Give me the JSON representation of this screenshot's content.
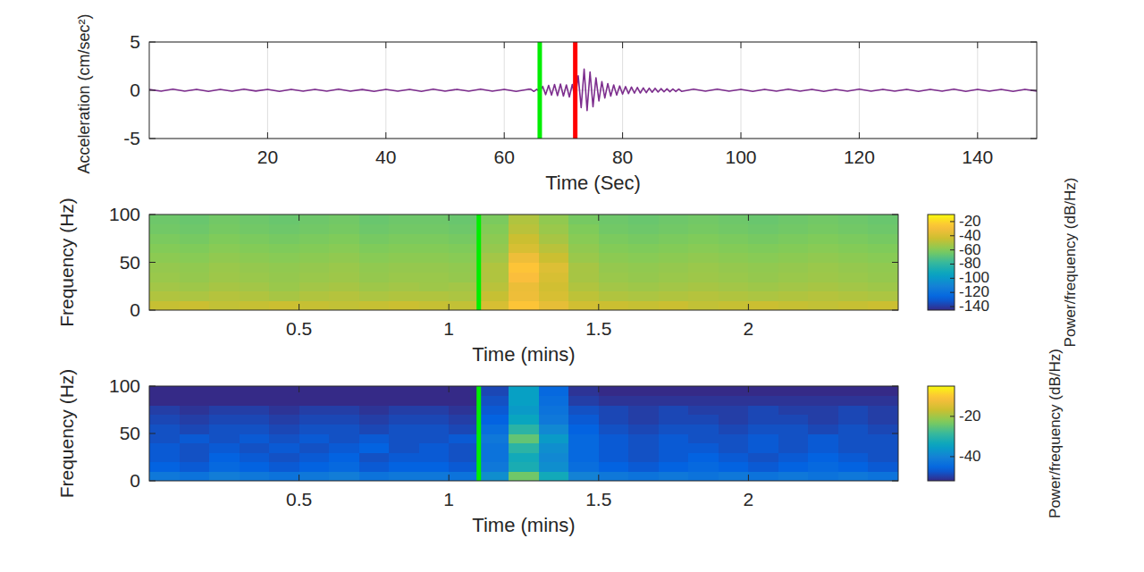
{
  "chart_data": [
    {
      "type": "line",
      "xlabel": "Time (Sec)",
      "ylabel": "Acceleration (cm/sec²)",
      "xlim": [
        0,
        150
      ],
      "xticks": [
        20,
        40,
        60,
        80,
        100,
        120,
        140
      ],
      "ylim": [
        -5,
        5
      ],
      "yticks": [
        -5,
        0,
        5
      ],
      "grid": true,
      "color": "#7d2e8e",
      "markers": [
        {
          "x": 66,
          "color": "#00ee00"
        },
        {
          "x": 72,
          "color": "#ff0000"
        }
      ],
      "x": [
        0,
        2,
        4,
        6,
        8,
        10,
        12,
        14,
        16,
        18,
        20,
        22,
        24,
        26,
        28,
        30,
        32,
        34,
        36,
        38,
        40,
        42,
        44,
        46,
        48,
        50,
        52,
        54,
        56,
        58,
        60,
        62,
        64,
        64.5,
        65,
        65.5,
        66,
        66.5,
        67,
        67.5,
        68,
        68.5,
        69,
        69.5,
        70,
        70.5,
        71,
        71.5,
        72,
        72.5,
        73,
        73.5,
        74,
        74.5,
        75,
        75.5,
        76,
        76.5,
        77,
        77.5,
        78,
        78.5,
        79,
        79.5,
        80,
        80.5,
        81,
        81.5,
        82,
        82.5,
        83,
        83.5,
        84,
        84.5,
        85,
        85.5,
        86,
        86.5,
        87,
        87.5,
        88,
        88.5,
        89,
        89.5,
        90,
        92,
        94,
        96,
        98,
        100,
        102,
        104,
        106,
        108,
        110,
        112,
        114,
        116,
        118,
        120,
        122,
        124,
        126,
        128,
        130,
        132,
        134,
        136,
        138,
        140,
        142,
        144,
        146,
        148,
        150
      ],
      "values": [
        0.08,
        -0.1,
        0.12,
        -0.09,
        0.1,
        -0.11,
        0.09,
        -0.1,
        0.11,
        -0.08,
        0.1,
        -0.12,
        0.09,
        -0.1,
        0.1,
        -0.09,
        0.12,
        -0.1,
        0.08,
        -0.11,
        0.1,
        -0.1,
        0.09,
        -0.12,
        0.11,
        -0.1,
        0.1,
        -0.09,
        0.12,
        -0.1,
        0.09,
        -0.11,
        0.1,
        0.1,
        -0.12,
        0.1,
        -0.15,
        0.4,
        -0.45,
        0.5,
        -0.5,
        0.6,
        -0.55,
        0.65,
        -0.6,
        0.55,
        -0.7,
        0.6,
        -0.8,
        1.5,
        -1.8,
        2.2,
        -2.1,
        1.9,
        -1.7,
        1.3,
        -1.1,
        0.9,
        -0.8,
        0.7,
        -0.6,
        0.55,
        -0.5,
        0.45,
        -0.4,
        0.38,
        -0.35,
        0.33,
        -0.3,
        0.3,
        -0.28,
        0.25,
        -0.25,
        0.22,
        -0.2,
        0.2,
        -0.18,
        0.17,
        -0.16,
        0.15,
        -0.15,
        0.14,
        -0.13,
        0.12,
        -0.12,
        0.11,
        -0.1,
        0.12,
        -0.1,
        0.09,
        -0.11,
        0.1,
        -0.1,
        0.12,
        -0.09,
        0.1,
        -0.12,
        0.09,
        -0.1,
        0.11,
        -0.1,
        0.1,
        -0.09,
        0.1,
        -0.11,
        0.09,
        -0.1,
        0.11,
        -0.12,
        0.1,
        -0.1,
        0.09,
        -0.11,
        0.1,
        -0.08
      ]
    },
    {
      "type": "heatmap",
      "xlabel": "Time (mins)",
      "ylabel": "Frequency (Hz)",
      "xlim": [
        0,
        2.5
      ],
      "xticks": [
        0.5,
        1,
        1.5,
        2
      ],
      "ylim": [
        0,
        100
      ],
      "yticks": [
        0,
        50,
        100
      ],
      "grid": false,
      "markers": [
        {
          "x": 1.1,
          "color": "#00ee00"
        }
      ],
      "xbins": [
        0,
        0.1,
        0.2,
        0.3,
        0.4,
        0.5,
        0.6,
        0.7,
        0.8,
        0.9,
        1,
        1.1,
        1.2,
        1.3,
        1.4,
        1.5,
        1.6,
        1.7,
        1.8,
        1.9,
        2,
        2.1,
        2.2,
        2.3,
        2.4,
        2.5
      ],
      "ybins": [
        0,
        10,
        20,
        30,
        40,
        50,
        60,
        70,
        80,
        90,
        100
      ],
      "z": [
        [
          -45,
          -44,
          -46,
          -45,
          -44,
          -45,
          -46,
          -45,
          -44,
          -45,
          -46,
          -40,
          -25,
          -35,
          -42,
          -44,
          -45,
          -44,
          -46,
          -45,
          -44,
          -45,
          -46,
          -45,
          -44
        ],
        [
          -50,
          -51,
          -49,
          -50,
          -52,
          -50,
          -49,
          -51,
          -50,
          -50,
          -51,
          -45,
          -32,
          -40,
          -47,
          -50,
          -51,
          -50,
          -49,
          -50,
          -51,
          -50,
          -49,
          -50,
          -51
        ],
        [
          -53,
          -54,
          -52,
          -53,
          -55,
          -53,
          -52,
          -54,
          -53,
          -54,
          -53,
          -48,
          -33,
          -42,
          -50,
          -53,
          -54,
          -53,
          -52,
          -53,
          -54,
          -53,
          -52,
          -53,
          -54
        ],
        [
          -55,
          -56,
          -54,
          -55,
          -56,
          -55,
          -54,
          -56,
          -55,
          -55,
          -56,
          -50,
          -28,
          -40,
          -52,
          -55,
          -56,
          -55,
          -54,
          -55,
          -56,
          -55,
          -54,
          -55,
          -56
        ],
        [
          -56,
          -57,
          -55,
          -56,
          -57,
          -56,
          -55,
          -57,
          -56,
          -56,
          -57,
          -50,
          -25,
          -38,
          -52,
          -56,
          -57,
          -56,
          -55,
          -56,
          -57,
          -56,
          -55,
          -56,
          -57
        ],
        [
          -58,
          -59,
          -57,
          -58,
          -59,
          -58,
          -57,
          -59,
          -58,
          -58,
          -59,
          -53,
          -32,
          -44,
          -55,
          -58,
          -59,
          -58,
          -57,
          -58,
          -59,
          -58,
          -57,
          -58,
          -59
        ],
        [
          -60,
          -61,
          -59,
          -60,
          -61,
          -60,
          -59,
          -61,
          -60,
          -60,
          -61,
          -56,
          -40,
          -48,
          -57,
          -60,
          -61,
          -60,
          -59,
          -60,
          -61,
          -60,
          -59,
          -60,
          -61
        ],
        [
          -62,
          -63,
          -61,
          -62,
          -63,
          -62,
          -61,
          -63,
          -62,
          -62,
          -63,
          -58,
          -44,
          -52,
          -59,
          -62,
          -63,
          -62,
          -61,
          -62,
          -63,
          -62,
          -61,
          -62,
          -63
        ],
        [
          -64,
          -65,
          -63,
          -64,
          -65,
          -64,
          -63,
          -65,
          -64,
          -64,
          -65,
          -60,
          -48,
          -55,
          -61,
          -64,
          -65,
          -64,
          -63,
          -64,
          -65,
          -64,
          -63,
          -64,
          -65
        ],
        [
          -65,
          -66,
          -64,
          -65,
          -66,
          -65,
          -64,
          -66,
          -65,
          -65,
          -66,
          -62,
          -50,
          -57,
          -63,
          -65,
          -66,
          -65,
          -64,
          -65,
          -66,
          -65,
          -64,
          -65,
          -66
        ]
      ],
      "colorbar": {
        "label": "Power/frequency (dB/Hz)",
        "lim": [
          -145,
          -10
        ],
        "ticks": [
          -20,
          -40,
          -60,
          -80,
          -100,
          -120,
          -140
        ]
      }
    },
    {
      "type": "heatmap",
      "xlabel": "Time (mins)",
      "ylabel": "Frequency (Hz)",
      "xlim": [
        0,
        2.5
      ],
      "xticks": [
        0.5,
        1,
        1.5,
        2
      ],
      "ylim": [
        0,
        100
      ],
      "yticks": [
        0,
        50,
        100
      ],
      "grid": false,
      "markers": [
        {
          "x": 1.1,
          "color": "#00ee00"
        }
      ],
      "xbins": [
        0,
        0.1,
        0.2,
        0.3,
        0.4,
        0.5,
        0.6,
        0.7,
        0.8,
        0.9,
        1,
        1.1,
        1.2,
        1.3,
        1.4,
        1.5,
        1.6,
        1.7,
        1.8,
        1.9,
        2,
        2.1,
        2.2,
        2.3,
        2.4,
        2.5
      ],
      "ybins": [
        0,
        10,
        20,
        30,
        40,
        50,
        60,
        70,
        80,
        90,
        100
      ],
      "z": [
        [
          -42,
          -43,
          -41,
          -42,
          -43,
          -42,
          -41,
          -43,
          -42,
          -42,
          -43,
          -38,
          -24,
          -33,
          -40,
          -42,
          -43,
          -42,
          -43,
          -42,
          -43,
          -42,
          -43,
          -42,
          -43
        ],
        [
          -46,
          -47,
          -45,
          -46,
          -47,
          -46,
          -45,
          -47,
          -46,
          -46,
          -47,
          -42,
          -32,
          -38,
          -44,
          -46,
          -47,
          -46,
          -45,
          -46,
          -47,
          -46,
          -45,
          -46,
          -47
        ],
        [
          -47,
          -48,
          -46,
          -47,
          -48,
          -47,
          -46,
          -48,
          -47,
          -47,
          -48,
          -43,
          -33,
          -39,
          -45,
          -47,
          -48,
          -47,
          -46,
          -47,
          -48,
          -47,
          -46,
          -47,
          -48
        ],
        [
          -47,
          -48,
          -47,
          -48,
          -47,
          -48,
          -47,
          -46,
          -48,
          -47,
          -48,
          -43,
          -30,
          -38,
          -45,
          -47,
          -48,
          -47,
          -47,
          -48,
          -47,
          -48,
          -47,
          -48,
          -48
        ],
        [
          -48,
          -47,
          -48,
          -47,
          -48,
          -47,
          -48,
          -47,
          -48,
          -48,
          -47,
          -42,
          -25,
          -36,
          -45,
          -47,
          -48,
          -47,
          -48,
          -48,
          -47,
          -48,
          -47,
          -48,
          -48
        ],
        [
          -48,
          -49,
          -48,
          -48,
          -49,
          -48,
          -48,
          -49,
          -48,
          -48,
          -49,
          -44,
          -30,
          -39,
          -46,
          -48,
          -49,
          -48,
          -48,
          -49,
          -48,
          -48,
          -49,
          -48,
          -49
        ],
        [
          -49,
          -50,
          -49,
          -49,
          -50,
          -49,
          -49,
          -50,
          -49,
          -49,
          -50,
          -46,
          -34,
          -42,
          -47,
          -49,
          -50,
          -49,
          -49,
          -50,
          -49,
          -49,
          -50,
          -49,
          -50
        ],
        [
          -50,
          -51,
          -50,
          -50,
          -51,
          -50,
          -50,
          -51,
          -50,
          -50,
          -51,
          -47,
          -36,
          -43,
          -48,
          -49,
          -50,
          -49,
          -50,
          -50,
          -49,
          -50,
          -50,
          -49,
          -50
        ],
        [
          -52,
          -52,
          -52,
          -52,
          -52,
          -52,
          -52,
          -52,
          -52,
          -52,
          -52,
          -48,
          -35,
          -44,
          -50,
          -51,
          -51,
          -51,
          -51,
          -51,
          -51,
          -51,
          -51,
          -51,
          -51
        ],
        [
          -52,
          -52,
          -52,
          -52,
          -52,
          -52,
          -52,
          -52,
          -52,
          -52,
          -52,
          -49,
          -35,
          -45,
          -51,
          -52,
          -52,
          -52,
          -52,
          -52,
          -52,
          -52,
          -52,
          -52,
          -52
        ]
      ],
      "colorbar": {
        "label": "Power/frequency (dB/Hz)",
        "lim": [
          -52,
          -5
        ],
        "ticks": [
          -20,
          -40
        ]
      }
    }
  ]
}
